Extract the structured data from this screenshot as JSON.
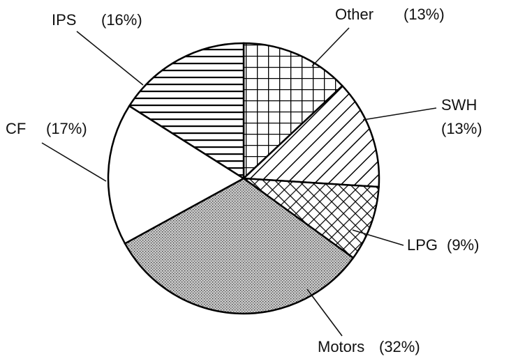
{
  "chart_data": {
    "type": "pie",
    "categories": [
      "Other",
      "SWH",
      "LPG",
      "Motors",
      "CF",
      "IPS"
    ],
    "values": [
      13,
      13,
      9,
      32,
      17,
      16
    ],
    "value_labels": [
      "(13%)",
      "(13%)",
      "(9%)",
      "(32%)",
      "(17%)",
      "(16%)"
    ]
  }
}
